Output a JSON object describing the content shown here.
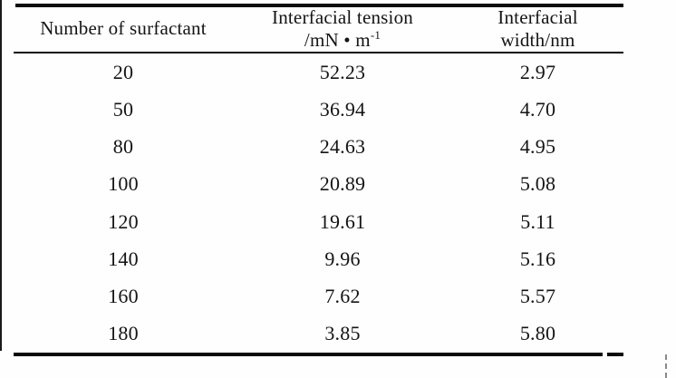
{
  "table": {
    "columns": {
      "col1": "Number of surfactant",
      "col2_line1": "Interfacial tension",
      "col2_unit_base": "/mN • m",
      "col2_unit_sup": "-1",
      "col3_line1": "Interfacial",
      "col3_line2": "width/nm"
    },
    "rows": [
      {
        "surfactant": "20",
        "tension": "52.23",
        "width": "2.97"
      },
      {
        "surfactant": "50",
        "tension": "36.94",
        "width": "4.70"
      },
      {
        "surfactant": "80",
        "tension": "24.63",
        "width": "4.95"
      },
      {
        "surfactant": "100",
        "tension": "20.89",
        "width": "5.08"
      },
      {
        "surfactant": "120",
        "tension": "19.61",
        "width": "5.11"
      },
      {
        "surfactant": "140",
        "tension": "9.96",
        "width": "5.16"
      },
      {
        "surfactant": "160",
        "tension": "7.62",
        "width": "5.57"
      },
      {
        "surfactant": "180",
        "tension": "3.85",
        "width": "5.80"
      }
    ]
  },
  "chart_data": {
    "type": "table",
    "title": "",
    "columns": [
      "Number of surfactant",
      "Interfacial tension /mN • m-1",
      "Interfacial width/nm"
    ],
    "rows": [
      [
        20,
        52.23,
        2.97
      ],
      [
        50,
        36.94,
        4.7
      ],
      [
        80,
        24.63,
        4.95
      ],
      [
        100,
        20.89,
        5.08
      ],
      [
        120,
        19.61,
        5.11
      ],
      [
        140,
        9.96,
        5.16
      ],
      [
        160,
        7.62,
        5.57
      ],
      [
        180,
        3.85,
        5.8
      ]
    ]
  },
  "colors": {
    "background": "#fefefe",
    "text": "#141414",
    "rule": "#0a0a0a"
  }
}
